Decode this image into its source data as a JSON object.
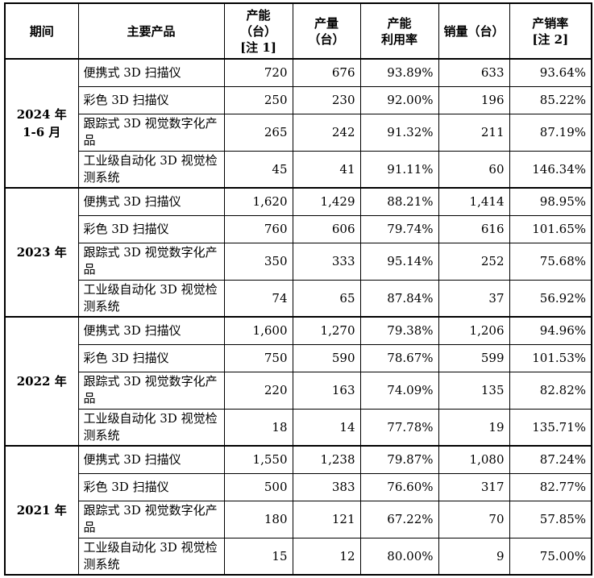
{
  "headers": {
    "period": "期间",
    "product": "主要产品",
    "capacity": "产能（台）[注 1]",
    "output": "产量（台）",
    "utilization": "产能利用率",
    "sales": "销量（台）",
    "sales_rate": "产销率[注 2]"
  },
  "header_lines": {
    "capacity": [
      "产能",
      "（台）",
      "[注 1]"
    ],
    "output": [
      "产量",
      "（台）"
    ],
    "utilization": [
      "产能",
      "利用率"
    ],
    "sales_rate": [
      "产销率",
      "[注 2]"
    ]
  },
  "groups": [
    {
      "period_lines": [
        "2024 年",
        "1-6 月"
      ],
      "rows": [
        {
          "product": "便携式 3D 扫描仪",
          "capacity": "720",
          "output": "676",
          "utilization": "93.89%",
          "sales": "633",
          "sales_rate": "93.64%"
        },
        {
          "product": "彩色 3D 扫描仪",
          "capacity": "250",
          "output": "230",
          "utilization": "92.00%",
          "sales": "196",
          "sales_rate": "85.22%"
        },
        {
          "product": "跟踪式 3D 视觉数字化产品",
          "capacity": "265",
          "output": "242",
          "utilization": "91.32%",
          "sales": "211",
          "sales_rate": "87.19%"
        },
        {
          "product": "工业级自动化 3D 视觉检测系统",
          "capacity": "45",
          "output": "41",
          "utilization": "91.11%",
          "sales": "60",
          "sales_rate": "146.34%"
        }
      ]
    },
    {
      "period_lines": [
        "2023 年"
      ],
      "rows": [
        {
          "product": "便携式 3D 扫描仪",
          "capacity": "1,620",
          "output": "1,429",
          "utilization": "88.21%",
          "sales": "1,414",
          "sales_rate": "98.95%"
        },
        {
          "product": "彩色 3D 扫描仪",
          "capacity": "760",
          "output": "606",
          "utilization": "79.74%",
          "sales": "616",
          "sales_rate": "101.65%"
        },
        {
          "product": "跟踪式 3D 视觉数字化产品",
          "capacity": "350",
          "output": "333",
          "utilization": "95.14%",
          "sales": "252",
          "sales_rate": "75.68%"
        },
        {
          "product": "工业级自动化 3D 视觉检测系统",
          "capacity": "74",
          "output": "65",
          "utilization": "87.84%",
          "sales": "37",
          "sales_rate": "56.92%"
        }
      ]
    },
    {
      "period_lines": [
        "2022 年"
      ],
      "rows": [
        {
          "product": "便携式 3D 扫描仪",
          "capacity": "1,600",
          "output": "1,270",
          "utilization": "79.38%",
          "sales": "1,206",
          "sales_rate": "94.96%"
        },
        {
          "product": "彩色 3D 扫描仪",
          "capacity": "750",
          "output": "590",
          "utilization": "78.67%",
          "sales": "599",
          "sales_rate": "101.53%"
        },
        {
          "product": "跟踪式 3D 视觉数字化产品",
          "capacity": "220",
          "output": "163",
          "utilization": "74.09%",
          "sales": "135",
          "sales_rate": "82.82%"
        },
        {
          "product": "工业级自动化 3D 视觉检测系统",
          "capacity": "18",
          "output": "14",
          "utilization": "77.78%",
          "sales": "19",
          "sales_rate": "135.71%"
        }
      ]
    },
    {
      "period_lines": [
        "2021 年"
      ],
      "rows": [
        {
          "product": "便携式 3D 扫描仪",
          "capacity": "1,550",
          "output": "1,238",
          "utilization": "79.87%",
          "sales": "1,080",
          "sales_rate": "87.24%"
        },
        {
          "product": "彩色 3D 扫描仪",
          "capacity": "500",
          "output": "383",
          "utilization": "76.60%",
          "sales": "317",
          "sales_rate": "82.77%"
        },
        {
          "product": "跟踪式 3D 视觉数字化产品",
          "capacity": "180",
          "output": "121",
          "utilization": "67.22%",
          "sales": "70",
          "sales_rate": "57.85%"
        },
        {
          "product": "工业级自动化 3D 视觉检测系统",
          "capacity": "15",
          "output": "12",
          "utilization": "80.00%",
          "sales": "9",
          "sales_rate": "75.00%"
        }
      ]
    }
  ]
}
